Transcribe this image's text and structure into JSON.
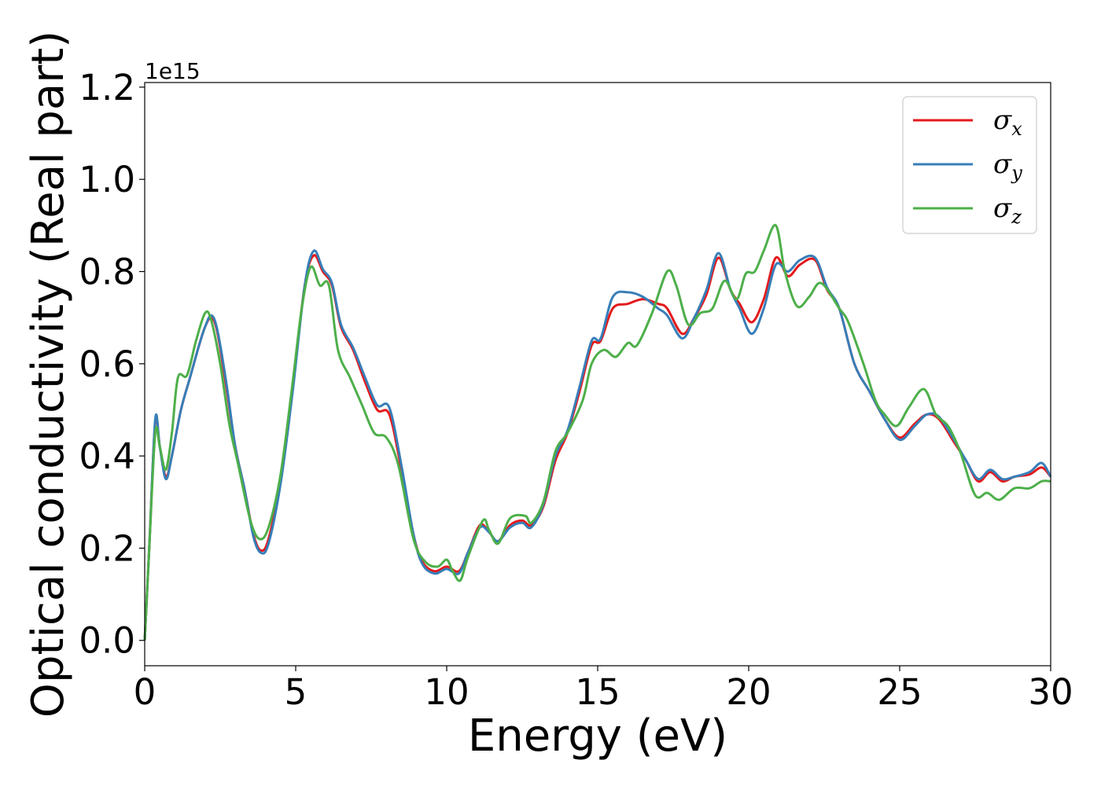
{
  "chart_data": {
    "type": "line",
    "xlabel": "Energy (eV)",
    "ylabel": "Optical conductivity (Real part)",
    "y_offset_label": "1e15",
    "xlim": [
      0,
      30
    ],
    "ylim": [
      -0.055,
      1.21
    ],
    "x_ticks": [
      0,
      5,
      10,
      15,
      20,
      25,
      30
    ],
    "x_tick_labels": [
      "0",
      "5",
      "10",
      "15",
      "20",
      "25",
      "30"
    ],
    "y_ticks": [
      0.0,
      0.2,
      0.4,
      0.6,
      0.8,
      1.0,
      1.2
    ],
    "y_tick_labels": [
      "0.0",
      "0.2",
      "0.4",
      "0.6",
      "0.8",
      "1.0",
      "1.2"
    ],
    "grid": false,
    "legend_position": "top-right",
    "series": [
      {
        "name": "σx",
        "legend_base": "σ",
        "legend_sub": "x",
        "color": "#e41a1c",
        "points": [
          [
            0,
            0.0
          ],
          [
            0.15,
            0.2
          ],
          [
            0.35,
            0.475
          ],
          [
            0.5,
            0.42
          ],
          [
            0.7,
            0.355
          ],
          [
            0.9,
            0.4
          ],
          [
            1.2,
            0.5
          ],
          [
            1.5,
            0.57
          ],
          [
            1.8,
            0.64
          ],
          [
            2.0,
            0.68
          ],
          [
            2.2,
            0.7
          ],
          [
            2.4,
            0.67
          ],
          [
            2.7,
            0.55
          ],
          [
            3.0,
            0.42
          ],
          [
            3.3,
            0.33
          ],
          [
            3.6,
            0.23
          ],
          [
            3.85,
            0.195
          ],
          [
            4.1,
            0.22
          ],
          [
            4.5,
            0.35
          ],
          [
            4.9,
            0.55
          ],
          [
            5.3,
            0.77
          ],
          [
            5.6,
            0.835
          ],
          [
            5.9,
            0.8
          ],
          [
            6.2,
            0.77
          ],
          [
            6.5,
            0.68
          ],
          [
            6.9,
            0.63
          ],
          [
            7.3,
            0.56
          ],
          [
            7.7,
            0.5
          ],
          [
            8.1,
            0.49
          ],
          [
            8.5,
            0.37
          ],
          [
            8.9,
            0.23
          ],
          [
            9.2,
            0.17
          ],
          [
            9.6,
            0.15
          ],
          [
            10.0,
            0.16
          ],
          [
            10.4,
            0.15
          ],
          [
            10.7,
            0.19
          ],
          [
            11.1,
            0.25
          ],
          [
            11.4,
            0.235
          ],
          [
            11.7,
            0.215
          ],
          [
            12.1,
            0.25
          ],
          [
            12.5,
            0.26
          ],
          [
            12.8,
            0.25
          ],
          [
            13.2,
            0.29
          ],
          [
            13.6,
            0.39
          ],
          [
            14.0,
            0.45
          ],
          [
            14.4,
            0.54
          ],
          [
            14.8,
            0.64
          ],
          [
            15.1,
            0.65
          ],
          [
            15.5,
            0.72
          ],
          [
            16.0,
            0.73
          ],
          [
            16.5,
            0.74
          ],
          [
            17.0,
            0.73
          ],
          [
            17.3,
            0.72
          ],
          [
            17.8,
            0.665
          ],
          [
            18.2,
            0.7
          ],
          [
            18.6,
            0.75
          ],
          [
            19.0,
            0.83
          ],
          [
            19.4,
            0.76
          ],
          [
            19.7,
            0.73
          ],
          [
            20.1,
            0.69
          ],
          [
            20.5,
            0.74
          ],
          [
            20.9,
            0.83
          ],
          [
            21.3,
            0.79
          ],
          [
            21.7,
            0.815
          ],
          [
            22.2,
            0.825
          ],
          [
            22.6,
            0.76
          ],
          [
            23.0,
            0.72
          ],
          [
            23.5,
            0.6
          ],
          [
            24.0,
            0.54
          ],
          [
            24.5,
            0.48
          ],
          [
            25.0,
            0.44
          ],
          [
            25.5,
            0.47
          ],
          [
            25.9,
            0.49
          ],
          [
            26.3,
            0.48
          ],
          [
            26.8,
            0.43
          ],
          [
            27.2,
            0.39
          ],
          [
            27.6,
            0.345
          ],
          [
            28.0,
            0.365
          ],
          [
            28.4,
            0.345
          ],
          [
            28.8,
            0.355
          ],
          [
            29.3,
            0.36
          ],
          [
            29.7,
            0.375
          ],
          [
            30.0,
            0.355
          ]
        ]
      },
      {
        "name": "σy",
        "legend_base": "σ",
        "legend_sub": "y",
        "color": "#377eb8",
        "points": [
          [
            0,
            0.0
          ],
          [
            0.15,
            0.2
          ],
          [
            0.35,
            0.48
          ],
          [
            0.5,
            0.42
          ],
          [
            0.7,
            0.35
          ],
          [
            0.9,
            0.4
          ],
          [
            1.2,
            0.5
          ],
          [
            1.5,
            0.57
          ],
          [
            1.8,
            0.64
          ],
          [
            2.0,
            0.68
          ],
          [
            2.2,
            0.705
          ],
          [
            2.4,
            0.675
          ],
          [
            2.7,
            0.56
          ],
          [
            3.0,
            0.42
          ],
          [
            3.3,
            0.33
          ],
          [
            3.6,
            0.225
          ],
          [
            3.85,
            0.19
          ],
          [
            4.1,
            0.21
          ],
          [
            4.5,
            0.34
          ],
          [
            4.9,
            0.54
          ],
          [
            5.3,
            0.77
          ],
          [
            5.6,
            0.845
          ],
          [
            5.9,
            0.805
          ],
          [
            6.2,
            0.775
          ],
          [
            6.5,
            0.685
          ],
          [
            6.9,
            0.635
          ],
          [
            7.3,
            0.57
          ],
          [
            7.7,
            0.51
          ],
          [
            8.1,
            0.505
          ],
          [
            8.5,
            0.38
          ],
          [
            8.9,
            0.23
          ],
          [
            9.2,
            0.165
          ],
          [
            9.6,
            0.145
          ],
          [
            10.0,
            0.155
          ],
          [
            10.4,
            0.145
          ],
          [
            10.7,
            0.19
          ],
          [
            11.1,
            0.245
          ],
          [
            11.4,
            0.235
          ],
          [
            11.7,
            0.215
          ],
          [
            12.1,
            0.245
          ],
          [
            12.5,
            0.255
          ],
          [
            12.8,
            0.245
          ],
          [
            13.2,
            0.295
          ],
          [
            13.6,
            0.4
          ],
          [
            14.0,
            0.455
          ],
          [
            14.4,
            0.55
          ],
          [
            14.8,
            0.65
          ],
          [
            15.1,
            0.655
          ],
          [
            15.5,
            0.745
          ],
          [
            16.0,
            0.755
          ],
          [
            16.5,
            0.745
          ],
          [
            17.0,
            0.72
          ],
          [
            17.3,
            0.705
          ],
          [
            17.8,
            0.655
          ],
          [
            18.2,
            0.7
          ],
          [
            18.6,
            0.76
          ],
          [
            19.0,
            0.84
          ],
          [
            19.4,
            0.76
          ],
          [
            19.7,
            0.72
          ],
          [
            20.1,
            0.665
          ],
          [
            20.5,
            0.72
          ],
          [
            20.9,
            0.815
          ],
          [
            21.3,
            0.8
          ],
          [
            21.7,
            0.825
          ],
          [
            22.2,
            0.83
          ],
          [
            22.6,
            0.765
          ],
          [
            23.0,
            0.72
          ],
          [
            23.5,
            0.6
          ],
          [
            24.0,
            0.54
          ],
          [
            24.5,
            0.48
          ],
          [
            25.0,
            0.435
          ],
          [
            25.5,
            0.465
          ],
          [
            25.9,
            0.49
          ],
          [
            26.3,
            0.485
          ],
          [
            26.8,
            0.435
          ],
          [
            27.2,
            0.39
          ],
          [
            27.6,
            0.35
          ],
          [
            28.0,
            0.37
          ],
          [
            28.4,
            0.35
          ],
          [
            28.8,
            0.355
          ],
          [
            29.3,
            0.365
          ],
          [
            29.7,
            0.385
          ],
          [
            30.0,
            0.355
          ]
        ]
      },
      {
        "name": "σz",
        "legend_base": "σ",
        "legend_sub": "z",
        "color": "#4daf4a",
        "points": [
          [
            0,
            0.0
          ],
          [
            0.15,
            0.2
          ],
          [
            0.35,
            0.45
          ],
          [
            0.5,
            0.42
          ],
          [
            0.7,
            0.37
          ],
          [
            0.9,
            0.45
          ],
          [
            1.1,
            0.57
          ],
          [
            1.4,
            0.575
          ],
          [
            1.7,
            0.65
          ],
          [
            2.0,
            0.71
          ],
          [
            2.2,
            0.695
          ],
          [
            2.5,
            0.6
          ],
          [
            2.8,
            0.47
          ],
          [
            3.1,
            0.38
          ],
          [
            3.5,
            0.26
          ],
          [
            3.8,
            0.22
          ],
          [
            4.1,
            0.245
          ],
          [
            4.5,
            0.36
          ],
          [
            4.9,
            0.56
          ],
          [
            5.2,
            0.72
          ],
          [
            5.5,
            0.81
          ],
          [
            5.8,
            0.77
          ],
          [
            6.1,
            0.77
          ],
          [
            6.4,
            0.63
          ],
          [
            6.8,
            0.57
          ],
          [
            7.2,
            0.51
          ],
          [
            7.6,
            0.45
          ],
          [
            8.0,
            0.44
          ],
          [
            8.4,
            0.38
          ],
          [
            8.9,
            0.22
          ],
          [
            9.3,
            0.17
          ],
          [
            9.7,
            0.16
          ],
          [
            10.0,
            0.175
          ],
          [
            10.2,
            0.15
          ],
          [
            10.45,
            0.13
          ],
          [
            10.7,
            0.18
          ],
          [
            11.2,
            0.26
          ],
          [
            11.4,
            0.24
          ],
          [
            11.7,
            0.21
          ],
          [
            12.1,
            0.265
          ],
          [
            12.6,
            0.27
          ],
          [
            12.8,
            0.255
          ],
          [
            13.2,
            0.3
          ],
          [
            13.6,
            0.41
          ],
          [
            14.0,
            0.45
          ],
          [
            14.5,
            0.52
          ],
          [
            14.8,
            0.6
          ],
          [
            15.2,
            0.63
          ],
          [
            15.6,
            0.615
          ],
          [
            16.0,
            0.645
          ],
          [
            16.3,
            0.64
          ],
          [
            16.8,
            0.71
          ],
          [
            17.3,
            0.8
          ],
          [
            17.6,
            0.77
          ],
          [
            18.0,
            0.685
          ],
          [
            18.4,
            0.71
          ],
          [
            18.8,
            0.72
          ],
          [
            19.2,
            0.78
          ],
          [
            19.6,
            0.74
          ],
          [
            19.9,
            0.795
          ],
          [
            20.2,
            0.8
          ],
          [
            20.5,
            0.845
          ],
          [
            20.9,
            0.9
          ],
          [
            21.2,
            0.8
          ],
          [
            21.6,
            0.725
          ],
          [
            22.0,
            0.745
          ],
          [
            22.4,
            0.775
          ],
          [
            23.0,
            0.72
          ],
          [
            23.3,
            0.69
          ],
          [
            23.8,
            0.6
          ],
          [
            24.2,
            0.52
          ],
          [
            24.5,
            0.49
          ],
          [
            24.9,
            0.465
          ],
          [
            25.3,
            0.505
          ],
          [
            25.8,
            0.545
          ],
          [
            26.2,
            0.49
          ],
          [
            26.6,
            0.465
          ],
          [
            27.0,
            0.41
          ],
          [
            27.5,
            0.315
          ],
          [
            27.9,
            0.32
          ],
          [
            28.3,
            0.305
          ],
          [
            28.8,
            0.33
          ],
          [
            29.3,
            0.33
          ],
          [
            29.7,
            0.345
          ],
          [
            30.0,
            0.345
          ]
        ]
      }
    ]
  }
}
